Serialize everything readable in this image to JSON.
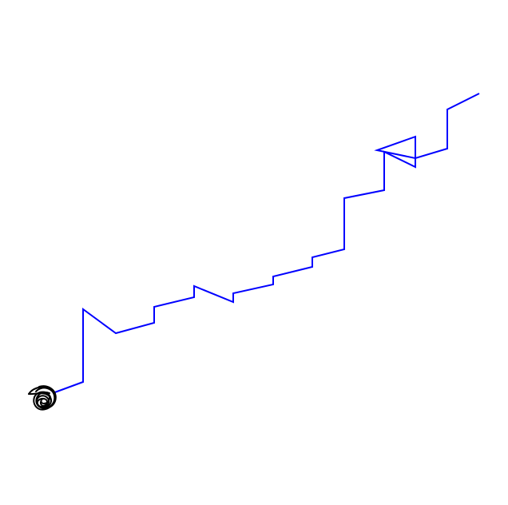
{
  "colors": {
    "background": "#ffffff",
    "path": "#0000ff",
    "scribble": "#000000"
  },
  "figure": {
    "type": "line-drawing",
    "elements": [
      {
        "name": "blue-zigzag-path",
        "color": "#0000ff"
      },
      {
        "name": "black-scribble-cluster",
        "color": "#000000"
      }
    ]
  }
}
